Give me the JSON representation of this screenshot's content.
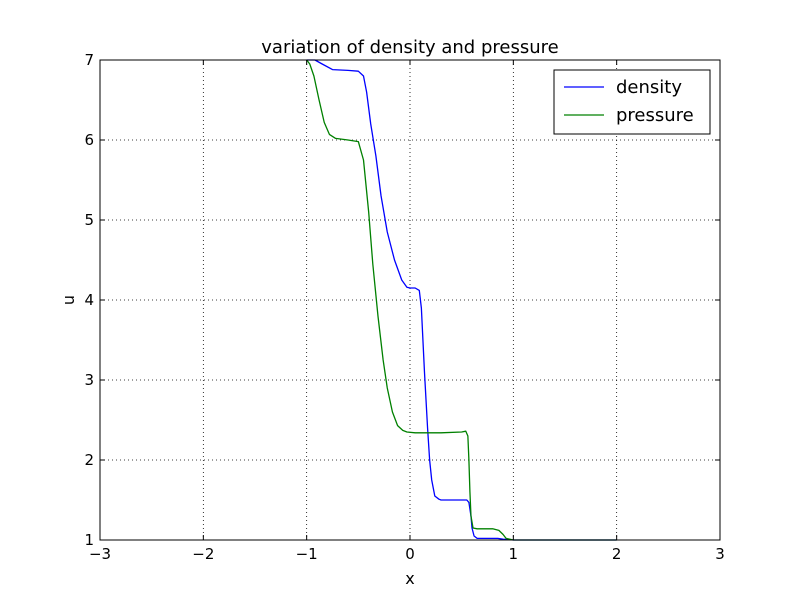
{
  "chart_data": {
    "type": "line",
    "title": "variation of density and pressure",
    "xlabel": "x",
    "ylabel": "u",
    "xlim": [
      -3,
      3
    ],
    "ylim": [
      1,
      7
    ],
    "grid": true,
    "legend_position": "top-right",
    "xticks": [
      -3,
      -2,
      -1,
      0,
      1,
      2,
      3
    ],
    "xtick_labels": [
      "−3",
      "−2",
      "−1",
      "0",
      "1",
      "2",
      "3"
    ],
    "yticks": [
      1,
      2,
      3,
      4,
      5,
      6,
      7
    ],
    "ytick_labels": [
      "1",
      "2",
      "3",
      "4",
      "5",
      "6",
      "7"
    ],
    "series": [
      {
        "name": "density",
        "color": "#0000ff",
        "x": [
          -1.0,
          -0.92,
          -0.85,
          -0.75,
          -0.6,
          -0.5,
          -0.45,
          -0.42,
          -0.38,
          -0.33,
          -0.28,
          -0.22,
          -0.15,
          -0.08,
          -0.03,
          0.0,
          0.05,
          0.09,
          0.11,
          0.14,
          0.17,
          0.19,
          0.21,
          0.24,
          0.28,
          0.3,
          0.4,
          0.55,
          0.57,
          0.59,
          0.6,
          0.62,
          0.65,
          0.75,
          0.85,
          0.9,
          1.0,
          2.0
        ],
        "y": [
          7.0,
          7.0,
          6.95,
          6.88,
          6.87,
          6.86,
          6.8,
          6.6,
          6.2,
          5.8,
          5.3,
          4.85,
          4.5,
          4.25,
          4.16,
          4.15,
          4.15,
          4.12,
          3.9,
          3.1,
          2.4,
          2.0,
          1.75,
          1.55,
          1.51,
          1.5,
          1.5,
          1.5,
          1.47,
          1.3,
          1.15,
          1.05,
          1.02,
          1.02,
          1.02,
          1.01,
          1.0,
          1.0
        ]
      },
      {
        "name": "pressure",
        "color": "#008000",
        "x": [
          -1.0,
          -0.97,
          -0.93,
          -0.88,
          -0.83,
          -0.78,
          -0.72,
          -0.6,
          -0.5,
          -0.45,
          -0.4,
          -0.36,
          -0.31,
          -0.26,
          -0.22,
          -0.17,
          -0.12,
          -0.07,
          -0.03,
          0.05,
          0.3,
          0.5,
          0.54,
          0.56,
          0.57,
          0.58,
          0.59,
          0.61,
          0.65,
          0.8,
          0.86,
          0.9,
          0.93,
          1.0,
          2.0
        ],
        "y": [
          7.0,
          6.95,
          6.8,
          6.5,
          6.22,
          6.07,
          6.02,
          6.0,
          5.98,
          5.75,
          5.1,
          4.45,
          3.8,
          3.25,
          2.9,
          2.6,
          2.43,
          2.37,
          2.35,
          2.34,
          2.34,
          2.35,
          2.36,
          2.3,
          2.0,
          1.6,
          1.3,
          1.15,
          1.14,
          1.14,
          1.12,
          1.07,
          1.02,
          1.0,
          1.0
        ]
      }
    ]
  }
}
